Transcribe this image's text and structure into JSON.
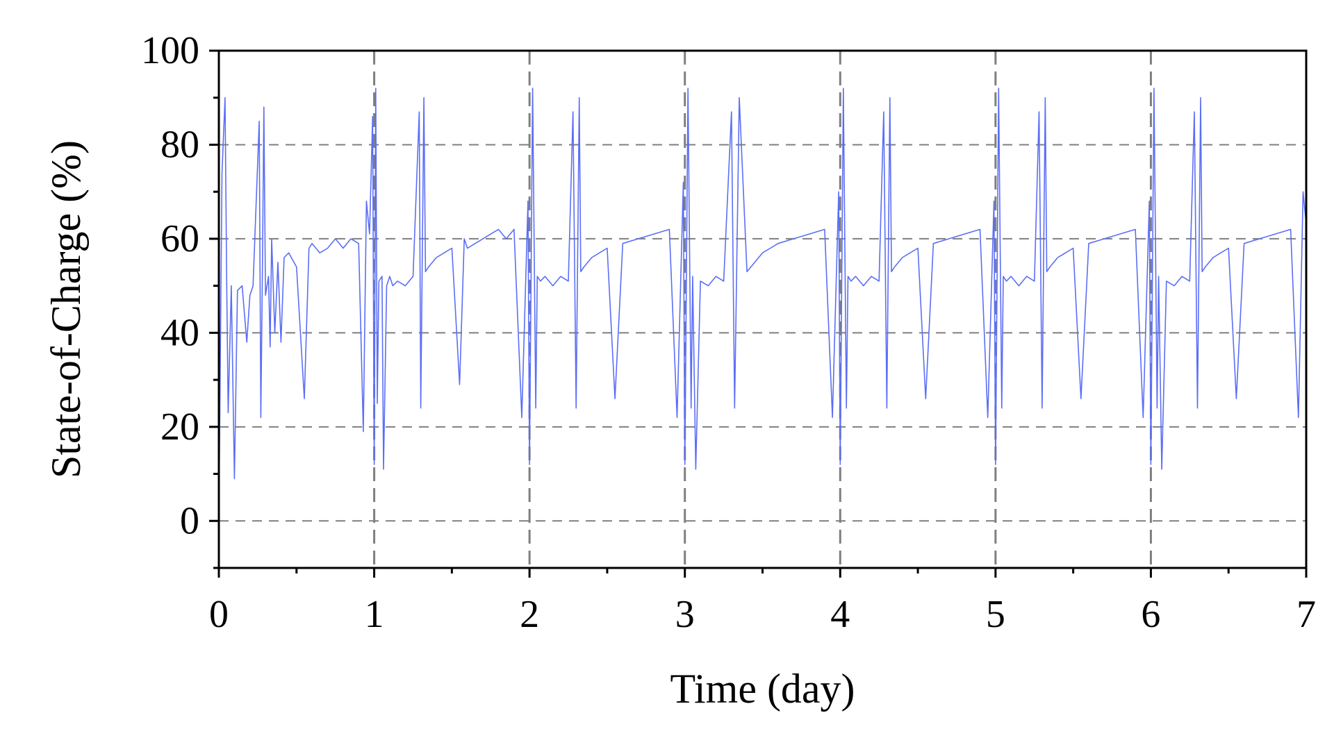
{
  "chart_data": {
    "type": "line",
    "title": "",
    "xlabel": "Time (day)",
    "ylabel": "State-of-Charge (%)",
    "xlim": [
      0,
      7
    ],
    "ylim": [
      -10,
      100
    ],
    "xticks": [
      0,
      1,
      2,
      3,
      4,
      5,
      6,
      7
    ],
    "xtick_labels": [
      "0",
      "1",
      "2",
      "3",
      "4",
      "5",
      "6",
      "7"
    ],
    "yticks": [
      0,
      20,
      40,
      60,
      80,
      100
    ],
    "ytick_labels": [
      "0",
      "20",
      "40",
      "60",
      "80",
      "100"
    ],
    "grid": true,
    "grid_style": "dashed",
    "legend": "none",
    "colors": {
      "series": "#5b6ef5",
      "grid": "#7f7f7f",
      "axis": "#000000"
    },
    "series": [
      {
        "x": [
          0,
          0.02,
          0.04,
          0.05,
          0.06,
          0.08,
          0.1,
          0.12,
          0.15,
          0.18,
          0.2,
          0.22,
          0.26,
          0.27,
          0.28,
          0.29,
          0.3,
          0.32,
          0.33,
          0.34,
          0.36,
          0.38,
          0.4,
          0.42,
          0.45,
          0.5,
          0.55,
          0.58,
          0.6,
          0.65,
          0.7,
          0.75,
          0.8,
          0.85,
          0.9,
          0.93,
          0.95,
          0.97,
          0.99,
          1.0,
          1.01,
          1.02,
          1.03,
          1.05,
          1.06,
          1.08,
          1.1,
          1.12,
          1.15,
          1.2,
          1.25,
          1.29,
          1.3,
          1.32,
          1.33,
          1.35,
          1.4,
          1.45,
          1.5,
          1.55,
          1.58,
          1.6,
          1.65,
          1.7,
          1.75,
          1.8,
          1.85,
          1.9,
          1.95,
          1.99,
          2.0,
          2.02,
          2.04,
          2.05,
          2.07,
          2.1,
          2.15,
          2.2,
          2.25,
          2.28,
          2.3,
          2.32,
          2.33,
          2.35,
          2.4,
          2.45,
          2.5,
          2.55,
          2.6,
          2.7,
          2.8,
          2.9,
          2.95,
          2.99,
          3.0,
          3.02,
          3.04,
          3.05,
          3.07,
          3.1,
          3.15,
          3.2,
          3.25,
          3.3,
          3.32,
          3.35,
          3.4,
          3.45,
          3.5,
          3.55,
          3.6,
          3.7,
          3.8,
          3.9,
          3.95,
          3.99,
          4.0,
          4.02,
          4.04,
          4.05,
          4.07,
          4.1,
          4.15,
          4.2,
          4.25,
          4.28,
          4.3,
          4.32,
          4.33,
          4.35,
          4.4,
          4.45,
          4.5,
          4.55,
          4.6,
          4.7,
          4.8,
          4.9,
          4.95,
          4.99,
          5.0,
          5.02,
          5.04,
          5.05,
          5.07,
          5.1,
          5.15,
          5.2,
          5.25,
          5.28,
          5.3,
          5.32,
          5.33,
          5.35,
          5.4,
          5.45,
          5.5,
          5.55,
          5.6,
          5.7,
          5.8,
          5.9,
          5.95,
          5.99,
          6.0,
          6.02,
          6.04,
          6.05,
          6.07,
          6.1,
          6.15,
          6.2,
          6.25,
          6.28,
          6.3,
          6.32,
          6.33,
          6.35,
          6.4,
          6.45,
          6.5,
          6.55,
          6.6,
          6.7,
          6.8,
          6.9,
          6.95,
          6.98,
          7.0
        ],
        "y": [
          0,
          74,
          90,
          52,
          23,
          50,
          9,
          49,
          50,
          38,
          48,
          50,
          85,
          22,
          52,
          88,
          48,
          52,
          37,
          60,
          40,
          55,
          38,
          56,
          57,
          54,
          26,
          58,
          59,
          57,
          58,
          60,
          58,
          60,
          59,
          19,
          68,
          61,
          86,
          12,
          92,
          25,
          51,
          52,
          11,
          50,
          52,
          50,
          51,
          50,
          52,
          87,
          24,
          90,
          53,
          54,
          56,
          57,
          58,
          29,
          60,
          58,
          59,
          60,
          61,
          62,
          60,
          62,
          22,
          68,
          12,
          92,
          24,
          52,
          51,
          52,
          50,
          52,
          51,
          87,
          24,
          90,
          53,
          54,
          56,
          57,
          58,
          26,
          59,
          60,
          61,
          62,
          22,
          72,
          12,
          92,
          24,
          52,
          11,
          51,
          50,
          52,
          51,
          87,
          24,
          90,
          53,
          55,
          57,
          58,
          59,
          60,
          61,
          62,
          22,
          70,
          12,
          92,
          24,
          52,
          51,
          52,
          50,
          52,
          51,
          87,
          24,
          90,
          53,
          54,
          56,
          57,
          58,
          26,
          59,
          60,
          61,
          62,
          22,
          68,
          12,
          92,
          24,
          52,
          51,
          52,
          50,
          52,
          51,
          87,
          24,
          90,
          53,
          54,
          56,
          57,
          58,
          26,
          59,
          60,
          61,
          62,
          22,
          68,
          12,
          92,
          24,
          52,
          11,
          51,
          50,
          52,
          51,
          87,
          24,
          90,
          53,
          54,
          56,
          57,
          58,
          26,
          59,
          60,
          61,
          62,
          22,
          70,
          63
        ]
      }
    ]
  }
}
